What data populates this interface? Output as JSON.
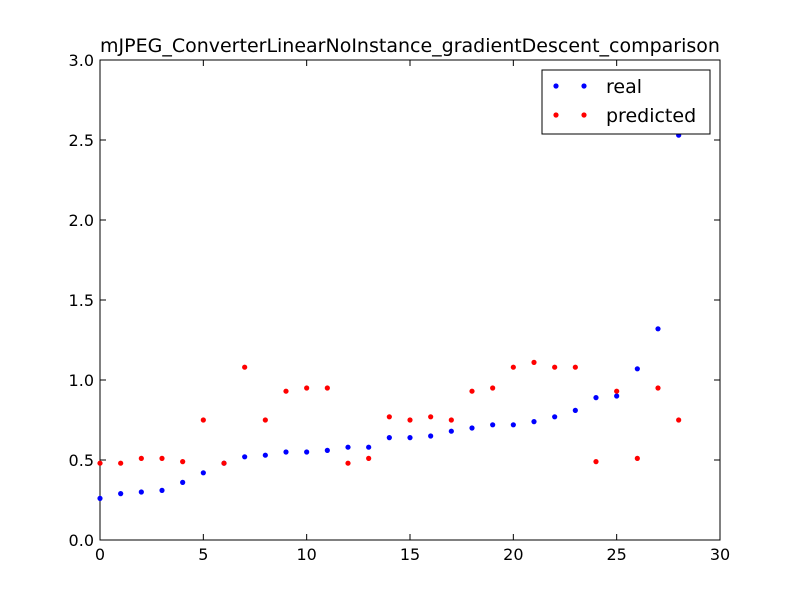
{
  "chart_data": {
    "type": "scatter",
    "title": "mJPEG_ConverterLinearNoInstance_gradientDescent_comparison",
    "xlabel": "",
    "ylabel": "",
    "xlim": [
      0,
      30
    ],
    "ylim": [
      0,
      3.0
    ],
    "x_ticks": [
      0,
      5,
      10,
      15,
      20,
      25,
      30
    ],
    "x_tick_labels": [
      "0",
      "5",
      "10",
      "15",
      "20",
      "25",
      "30"
    ],
    "y_ticks": [
      0.0,
      0.5,
      1.0,
      1.5,
      2.0,
      2.5,
      3.0
    ],
    "y_tick_labels": [
      "0.0",
      "0.5",
      "1.0",
      "1.5",
      "2.0",
      "2.5",
      "3.0"
    ],
    "grid": false,
    "legend_position": "top-right",
    "x": [
      0,
      1,
      2,
      3,
      4,
      5,
      6,
      7,
      8,
      9,
      10,
      11,
      12,
      13,
      14,
      15,
      16,
      17,
      18,
      19,
      20,
      21,
      22,
      23,
      24,
      25,
      26,
      27,
      28
    ],
    "series": [
      {
        "name": "real",
        "color": "#0000ff",
        "values": [
          0.26,
          0.29,
          0.3,
          0.31,
          0.36,
          0.42,
          0.48,
          0.52,
          0.53,
          0.55,
          0.55,
          0.56,
          0.58,
          0.58,
          0.64,
          0.64,
          0.65,
          0.68,
          0.7,
          0.72,
          0.72,
          0.74,
          0.77,
          0.81,
          0.89,
          0.9,
          1.07,
          1.32,
          2.53
        ]
      },
      {
        "name": "predicted",
        "color": "#ff0000",
        "values": [
          0.48,
          0.48,
          0.51,
          0.51,
          0.49,
          0.75,
          0.48,
          1.08,
          0.75,
          0.93,
          0.95,
          0.95,
          0.48,
          0.51,
          0.77,
          0.75,
          0.77,
          0.75,
          0.93,
          0.95,
          1.08,
          1.11,
          1.08,
          1.08,
          0.49,
          0.93,
          0.51,
          0.95,
          0.75
        ]
      }
    ]
  }
}
